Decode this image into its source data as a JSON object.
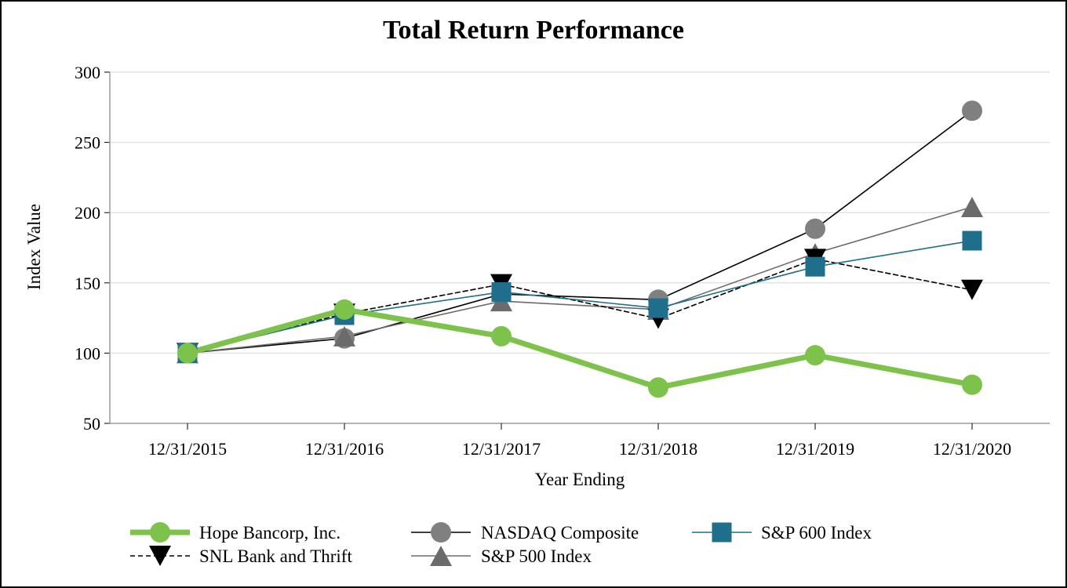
{
  "chart_data": {
    "type": "line",
    "title": "Total Return Performance",
    "xlabel": "Year Ending",
    "ylabel": "Index Value",
    "ylim": [
      50,
      300
    ],
    "yticks": [
      50,
      100,
      150,
      200,
      250,
      300
    ],
    "grid": true,
    "legend_placement": "bottom",
    "categories": [
      "12/31/2015",
      "12/31/2016",
      "12/31/2017",
      "12/31/2018",
      "12/31/2019",
      "12/31/2020"
    ],
    "series": [
      {
        "name": "Hope Bancorp, Inc.",
        "values": [
          100,
          131,
          112,
          75.5,
          98.5,
          77.5
        ],
        "color": "#7dc24b",
        "marker": "circle",
        "dash": "solid"
      },
      {
        "name": "NASDAQ Composite",
        "values": [
          100,
          110.5,
          142,
          138,
          188.5,
          272.5
        ],
        "color": "#000000",
        "marker_color": "#808080",
        "marker": "circle",
        "dash": "solid"
      },
      {
        "name": "S&P 600 Index",
        "values": [
          100,
          127,
          143.5,
          132,
          161.5,
          180
        ],
        "color": "#1f6e8c",
        "marker": "square",
        "dash": "solid"
      },
      {
        "name": "SNL Bank and Thrift",
        "values": [
          100,
          128,
          149,
          124.5,
          167,
          145
        ],
        "color": "#000000",
        "marker": "triangle-down",
        "dash": "dashed"
      },
      {
        "name": "S&P 500 Index",
        "values": [
          100,
          112,
          137,
          131,
          171,
          204
        ],
        "color": "#6b6b6b",
        "marker": "triangle-up",
        "dash": "solid"
      }
    ]
  }
}
